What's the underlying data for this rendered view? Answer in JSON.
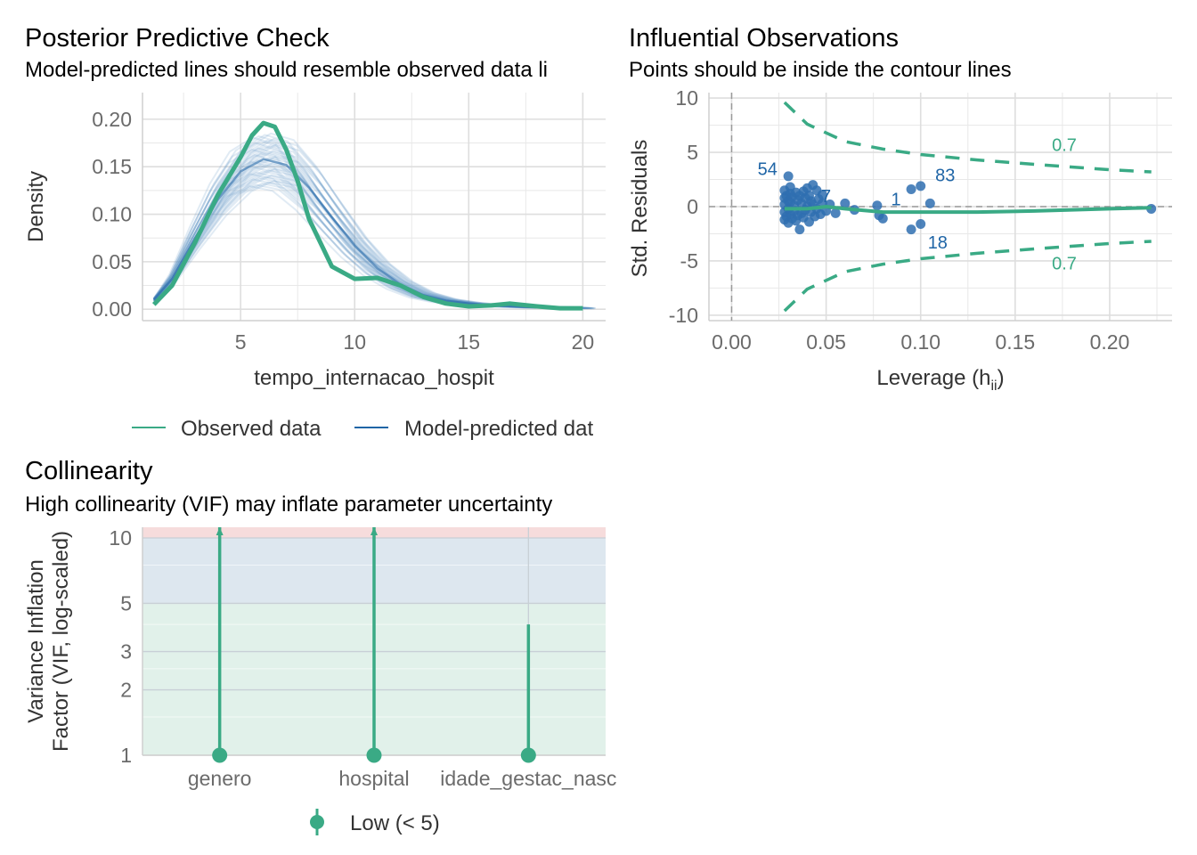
{
  "colors": {
    "observed": "#3aaa85",
    "predicted": "#1f65a6",
    "predicted_thin": "#5b8fc4",
    "points": "#2f6fb0",
    "contour": "#3aaa85",
    "grid": "#e8e8e8",
    "zone_high": "#f6dcdc",
    "zone_moderate": "#dde7ef",
    "zone_low": "#e1f1ea",
    "vif": "#3aaa85"
  },
  "chart_data": [
    {
      "type": "line",
      "id": "ppc",
      "title": "Posterior Predictive Check",
      "subtitle": "Model-predicted lines should resemble observed data li",
      "xlabel": "tempo_internacao_hospit",
      "ylabel": "Density",
      "xlim": [
        0.7,
        21.0
      ],
      "ylim": [
        -0.012,
        0.228
      ],
      "xticks": [
        5,
        10,
        15,
        20
      ],
      "xtick_labels": [
        "5",
        "10",
        "15",
        "20"
      ],
      "yticks": [
        0.0,
        0.05,
        0.1,
        0.15,
        0.2
      ],
      "ytick_labels": [
        "0.00",
        "0.05",
        "0.10",
        "0.15",
        "0.20"
      ],
      "grid": true,
      "legend": {
        "position": "bottom",
        "entries": [
          "Observed data",
          "Model-predicted dat"
        ]
      },
      "observed": {
        "x": [
          1.2,
          2,
          3,
          4,
          5,
          5.5,
          6,
          6.5,
          7,
          7.5,
          8,
          9,
          10,
          11,
          12,
          13,
          14,
          15,
          16,
          16.8,
          18,
          19,
          20
        ],
        "y": [
          0.005,
          0.025,
          0.07,
          0.12,
          0.16,
          0.183,
          0.196,
          0.192,
          0.168,
          0.135,
          0.095,
          0.045,
          0.032,
          0.033,
          0.025,
          0.013,
          0.006,
          0.003,
          0.004,
          0.006,
          0.003,
          0.001,
          0.001
        ]
      },
      "predicted_draws": 40,
      "predicted_mean": {
        "x": [
          1.2,
          2,
          3,
          4,
          5,
          6,
          7,
          8,
          9,
          10,
          11,
          12,
          13,
          14,
          15,
          16,
          17,
          18,
          19,
          20
        ],
        "y": [
          0.01,
          0.032,
          0.075,
          0.115,
          0.145,
          0.158,
          0.152,
          0.128,
          0.097,
          0.067,
          0.043,
          0.026,
          0.015,
          0.009,
          0.006,
          0.004,
          0.003,
          0.002,
          0.002,
          0.001
        ]
      }
    },
    {
      "type": "scatter",
      "id": "influence",
      "title": "Influential Observations",
      "subtitle": "Points should be inside the contour lines",
      "xlabel": "Leverage (h",
      "xlabel_sub": "ii",
      "xlabel_end": ")",
      "ylabel": "Std. Residuals",
      "xlim": [
        -0.012,
        0.233
      ],
      "ylim": [
        -10.5,
        10.5
      ],
      "xticks": [
        0.0,
        0.05,
        0.1,
        0.15,
        0.2
      ],
      "xtick_labels": [
        "0.00",
        "0.05",
        "0.10",
        "0.15",
        "0.20"
      ],
      "yticks": [
        -10,
        -5,
        0,
        5,
        10
      ],
      "ytick_labels": [
        "-10",
        "-5",
        "0",
        "5",
        "10"
      ],
      "grid": true,
      "points": [
        [
          0.028,
          1.5
        ],
        [
          0.028,
          0.8
        ],
        [
          0.028,
          0.2
        ],
        [
          0.028,
          -0.5
        ],
        [
          0.028,
          -1.2
        ],
        [
          0.029,
          1.0
        ],
        [
          0.029,
          -0.9
        ],
        [
          0.03,
          2.8
        ],
        [
          0.03,
          0.5
        ],
        [
          0.03,
          -0.2
        ],
        [
          0.03,
          -1.5
        ],
        [
          0.031,
          1.8
        ],
        [
          0.031,
          1.2
        ],
        [
          0.031,
          0.4
        ],
        [
          0.031,
          -0.7
        ],
        [
          0.032,
          0.9
        ],
        [
          0.032,
          -1.1
        ],
        [
          0.033,
          0.1
        ],
        [
          0.033,
          -0.4
        ],
        [
          0.034,
          1.3
        ],
        [
          0.034,
          -1.3
        ],
        [
          0.035,
          0.6
        ],
        [
          0.035,
          -0.8
        ],
        [
          0.036,
          1.0
        ],
        [
          0.036,
          -2.1
        ],
        [
          0.037,
          0.3
        ],
        [
          0.037,
          -0.6
        ],
        [
          0.038,
          1.4
        ],
        [
          0.038,
          -1.0
        ],
        [
          0.039,
          0.8
        ],
        [
          0.039,
          -0.3
        ],
        [
          0.04,
          1.7
        ],
        [
          0.04,
          0.0
        ],
        [
          0.041,
          1.0
        ],
        [
          0.041,
          -1.4
        ],
        [
          0.042,
          0.5
        ],
        [
          0.042,
          -0.5
        ],
        [
          0.043,
          2.0
        ],
        [
          0.043,
          0.2
        ],
        [
          0.044,
          -0.9
        ],
        [
          0.045,
          1.5
        ],
        [
          0.045,
          -0.2
        ],
        [
          0.046,
          0.7
        ],
        [
          0.047,
          -0.7
        ],
        [
          0.048,
          1.1
        ],
        [
          0.048,
          0.3
        ],
        [
          0.05,
          -0.4
        ],
        [
          0.052,
          0.2
        ],
        [
          0.055,
          -0.6
        ],
        [
          0.06,
          0.3
        ],
        [
          0.065,
          -0.3
        ],
        [
          0.077,
          0.1
        ],
        [
          0.078,
          -0.8
        ],
        [
          0.08,
          -1.1
        ],
        [
          0.095,
          -2.1
        ],
        [
          0.095,
          1.6
        ],
        [
          0.1,
          1.9
        ],
        [
          0.1,
          -1.6
        ],
        [
          0.105,
          0.3
        ],
        [
          0.222,
          -0.2
        ]
      ],
      "point_labels": [
        {
          "text": "54",
          "x": 0.019,
          "y": 3.5
        },
        {
          "text": "7",
          "x": 0.05,
          "y": 1.0
        },
        {
          "text": "1",
          "x": 0.087,
          "y": 0.7
        },
        {
          "text": "83",
          "x": 0.113,
          "y": 2.9
        },
        {
          "text": "18",
          "x": 0.109,
          "y": -3.3
        }
      ],
      "smooth": {
        "x": [
          0.028,
          0.04,
          0.05,
          0.06,
          0.08,
          0.1,
          0.13,
          0.16,
          0.2,
          0.222
        ],
        "y": [
          -0.2,
          -0.2,
          0.0,
          -0.2,
          -0.5,
          -0.5,
          -0.5,
          -0.4,
          -0.2,
          -0.1
        ]
      },
      "contour_upper": {
        "x": [
          0.028,
          0.04,
          0.06,
          0.08,
          0.1,
          0.13,
          0.16,
          0.2,
          0.222
        ],
        "y": [
          9.6,
          7.6,
          6.0,
          5.3,
          4.8,
          4.3,
          3.9,
          3.4,
          3.2
        ]
      },
      "contour_lower": {
        "x": [
          0.028,
          0.04,
          0.06,
          0.08,
          0.1,
          0.13,
          0.16,
          0.2,
          0.222
        ],
        "y": [
          -9.6,
          -7.6,
          -6.0,
          -5.3,
          -4.8,
          -4.3,
          -3.9,
          -3.4,
          -3.2
        ]
      },
      "contour_labels": [
        {
          "text": "0.7",
          "x": 0.176,
          "y": 5.7
        },
        {
          "text": "0.7",
          "x": 0.176,
          "y": -5.2
        }
      ]
    },
    {
      "type": "bar",
      "id": "collinearity",
      "title": "Collinearity",
      "subtitle": "High collinearity (VIF) may inflate parameter uncertainty",
      "ylabel_line1": "Variance Inflation",
      "ylabel_line2": "Factor (VIF, log-scaled)",
      "log_scale": true,
      "ylim": [
        1,
        11.2
      ],
      "yticks": [
        1,
        2,
        3,
        5,
        10
      ],
      "ytick_labels": [
        "1",
        "2",
        "3",
        "5",
        "10"
      ],
      "categories": [
        "genero",
        "hospital",
        "idade_gestac_nasc"
      ],
      "values": [
        1.0,
        1.0,
        1.0
      ],
      "interval_high": [
        11.2,
        11.2,
        4.0
      ],
      "zones": [
        {
          "from": 10,
          "to": 11.2,
          "level": "high"
        },
        {
          "from": 5,
          "to": 10,
          "level": "moderate"
        },
        {
          "from": 1,
          "to": 5,
          "level": "low"
        }
      ],
      "legend": {
        "position": "bottom",
        "entries": [
          "Low (< 5)"
        ]
      }
    }
  ]
}
